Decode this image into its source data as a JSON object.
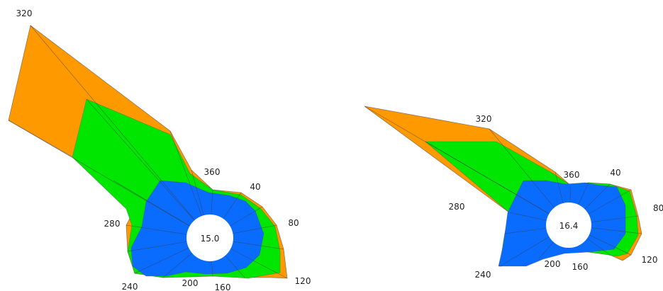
{
  "diagrams": [
    {
      "center_value": "15.0",
      "angle_labels": [
        "320",
        "360",
        "40",
        "80",
        "120",
        "160",
        "200",
        "240",
        "280"
      ]
    },
    {
      "center_value": "16.4",
      "angle_labels": [
        "320",
        "360",
        "40",
        "80",
        "120",
        "160",
        "200",
        "240",
        "280"
      ]
    }
  ],
  "colors": {
    "outer": "#ff9900",
    "middle": "#00e600",
    "inner": "#0a6cff",
    "center": "#ffffff"
  }
}
